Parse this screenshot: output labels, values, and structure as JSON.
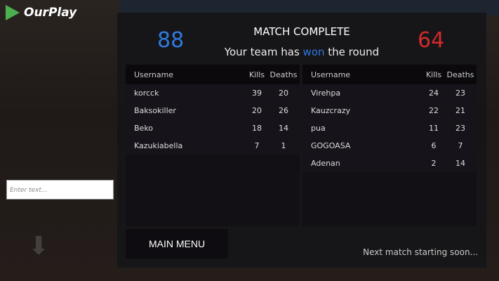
{
  "app": {
    "brand": "OurPlay"
  },
  "chat": {
    "placeholder": "Enter text..."
  },
  "header": {
    "title": "MATCH COMPLETE",
    "subtitle_pre": "Your team has ",
    "subtitle_result": "won",
    "subtitle_post": " the round",
    "score_blue": "88",
    "score_red": "64"
  },
  "columns": {
    "username": "Username",
    "kills": "Kills",
    "deaths": "Deaths"
  },
  "team_blue": [
    {
      "name": "korcck",
      "kills": "39",
      "deaths": "20"
    },
    {
      "name": "Baksokiller",
      "kills": "20",
      "deaths": "26"
    },
    {
      "name": "Beko",
      "kills": "18",
      "deaths": "14"
    },
    {
      "name": "Kazukiabella",
      "kills": "7",
      "deaths": "1"
    }
  ],
  "team_red": [
    {
      "name": "Virehpa",
      "kills": "24",
      "deaths": "23"
    },
    {
      "name": "Kauzcrazy",
      "kills": "22",
      "deaths": "21"
    },
    {
      "name": "pua",
      "kills": "11",
      "deaths": "23"
    },
    {
      "name": "GOGOASA",
      "kills": "6",
      "deaths": "7"
    },
    {
      "name": "Adenan",
      "kills": "2",
      "deaths": "14"
    }
  ],
  "footer": {
    "main_menu": "MAIN MENU",
    "status": "Next match starting soon..."
  },
  "colors": {
    "blue": "#2f7ae0",
    "red": "#d42a2a"
  }
}
